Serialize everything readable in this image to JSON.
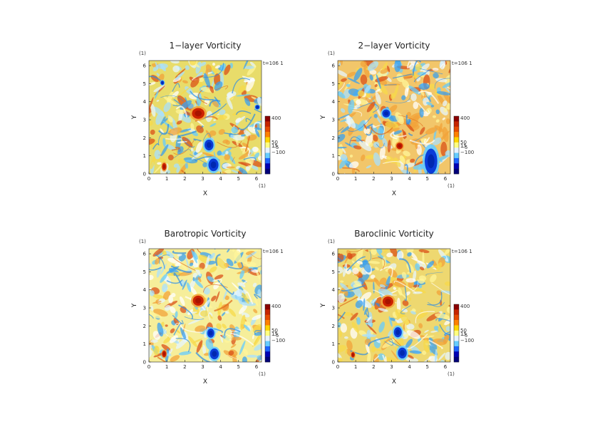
{
  "chart_data": [
    {
      "type": "heatmap",
      "title": "1−layer Vorticity",
      "xlabel": "X",
      "ylabel": "Y",
      "x_unit": "(1)",
      "y_unit": "(1)",
      "xlim": [
        0,
        6.28
      ],
      "ylim": [
        0,
        6.28
      ],
      "xticks": [
        "0",
        "1",
        "2",
        "3",
        "4",
        "5",
        "6"
      ],
      "yticks": [
        "0",
        "1",
        "2",
        "3",
        "4",
        "5",
        "6"
      ],
      "time_label": "t=106 1",
      "colorbar": {
        "labels": [
          "400",
          "50",
          "15",
          "−5",
          "−100"
        ],
        "colors": [
          "#8b0000",
          "#c62400",
          "#e64a00",
          "#ff8000",
          "#ffd400",
          "#ffff80",
          "#e6f2ff",
          "#66ccff",
          "#1e64ff",
          "#0000b4",
          "#00007a"
        ]
      },
      "background": "#e8dc6a",
      "vortices": [
        {
          "x": 2.75,
          "y": 3.35,
          "value": 400,
          "rx": 0.35,
          "ry": 0.3
        },
        {
          "x": 3.35,
          "y": 1.6,
          "value": -100,
          "rx": 0.25,
          "ry": 0.3
        },
        {
          "x": 3.6,
          "y": 0.5,
          "value": -100,
          "rx": 0.28,
          "ry": 0.35
        },
        {
          "x": 0.85,
          "y": 0.4,
          "value": 400,
          "rx": 0.12,
          "ry": 0.2
        },
        {
          "x": 0.75,
          "y": 5.05,
          "value": -100,
          "rx": 0.1,
          "ry": 0.12
        },
        {
          "x": 6.05,
          "y": 3.7,
          "value": -100,
          "rx": 0.12,
          "ry": 0.12
        }
      ]
    },
    {
      "type": "heatmap",
      "title": "2−layer Vorticity",
      "xlabel": "X",
      "ylabel": "Y",
      "x_unit": "(1)",
      "y_unit": "(1)",
      "xlim": [
        0,
        6.28
      ],
      "ylim": [
        0,
        6.28
      ],
      "xticks": [
        "0",
        "1",
        "2",
        "3",
        "4",
        "5",
        "6"
      ],
      "yticks": [
        "0",
        "1",
        "2",
        "3",
        "4",
        "5",
        "6"
      ],
      "time_label": "t=106 1",
      "colorbar": {
        "labels": [
          "400",
          "50",
          "15",
          "−5",
          "−100"
        ],
        "colors": [
          "#8b0000",
          "#c62400",
          "#e64a00",
          "#ff8000",
          "#ffd400",
          "#ffff80",
          "#e6f2ff",
          "#66ccff",
          "#1e64ff",
          "#0000b4",
          "#00007a"
        ]
      },
      "background": "#f2c66a",
      "vortices": [
        {
          "x": 2.7,
          "y": 3.35,
          "value": -100,
          "rx": 0.22,
          "ry": 0.22
        },
        {
          "x": 3.45,
          "y": 1.55,
          "value": 400,
          "rx": 0.18,
          "ry": 0.18
        },
        {
          "x": 5.2,
          "y": 0.7,
          "value": -100,
          "rx": 0.35,
          "ry": 0.7
        }
      ]
    },
    {
      "type": "heatmap",
      "title": "Barotropic Vorticity",
      "xlabel": "X",
      "ylabel": "Y",
      "x_unit": "(1)",
      "y_unit": "(1)",
      "xlim": [
        0,
        6.28
      ],
      "ylim": [
        0,
        6.28
      ],
      "xticks": [
        "0",
        "1",
        "2",
        "3",
        "4",
        "5",
        "6"
      ],
      "yticks": [
        "0",
        "1",
        "2",
        "3",
        "4",
        "5",
        "6"
      ],
      "time_label": "t=106 1",
      "colorbar": {
        "labels": [
          "400",
          "50",
          "15",
          "−5",
          "−100"
        ],
        "colors": [
          "#8b0000",
          "#c62400",
          "#e64a00",
          "#ff8000",
          "#ffd400",
          "#ffff80",
          "#e6f2ff",
          "#66ccff",
          "#1e64ff",
          "#0000b4",
          "#00007a"
        ]
      },
      "background": "#f6ee9a",
      "vortices": [
        {
          "x": 2.75,
          "y": 3.4,
          "value": 400,
          "rx": 0.3,
          "ry": 0.28
        },
        {
          "x": 3.45,
          "y": 1.6,
          "value": -100,
          "rx": 0.2,
          "ry": 0.25
        },
        {
          "x": 3.65,
          "y": 0.45,
          "value": -100,
          "rx": 0.25,
          "ry": 0.3
        },
        {
          "x": 0.85,
          "y": 0.45,
          "value": 400,
          "rx": 0.12,
          "ry": 0.18
        }
      ]
    },
    {
      "type": "heatmap",
      "title": "Baroclinic Vorticity",
      "xlabel": "X",
      "ylabel": "Y",
      "x_unit": "(1)",
      "y_unit": "(1)",
      "xlim": [
        0,
        6.28
      ],
      "ylim": [
        0,
        6.28
      ],
      "xticks": [
        "0",
        "1",
        "2",
        "3",
        "4",
        "5",
        "6"
      ],
      "yticks": [
        "0",
        "1",
        "2",
        "3",
        "4",
        "5",
        "6"
      ],
      "time_label": "t=106 1",
      "colorbar": {
        "labels": [
          "400",
          "50",
          "15",
          "−5",
          "−100"
        ],
        "colors": [
          "#8b0000",
          "#c62400",
          "#e64a00",
          "#ff8000",
          "#ffd400",
          "#ffff80",
          "#e6f2ff",
          "#66ccff",
          "#1e64ff",
          "#0000b4",
          "#00007a"
        ]
      },
      "background": "#eed870",
      "vortices": [
        {
          "x": 2.8,
          "y": 3.35,
          "value": 400,
          "rx": 0.3,
          "ry": 0.28
        },
        {
          "x": 3.35,
          "y": 1.65,
          "value": -100,
          "rx": 0.22,
          "ry": 0.28
        },
        {
          "x": 3.6,
          "y": 0.5,
          "value": -100,
          "rx": 0.25,
          "ry": 0.3
        },
        {
          "x": 0.85,
          "y": 0.4,
          "value": 400,
          "rx": 0.1,
          "ry": 0.15
        }
      ]
    }
  ]
}
